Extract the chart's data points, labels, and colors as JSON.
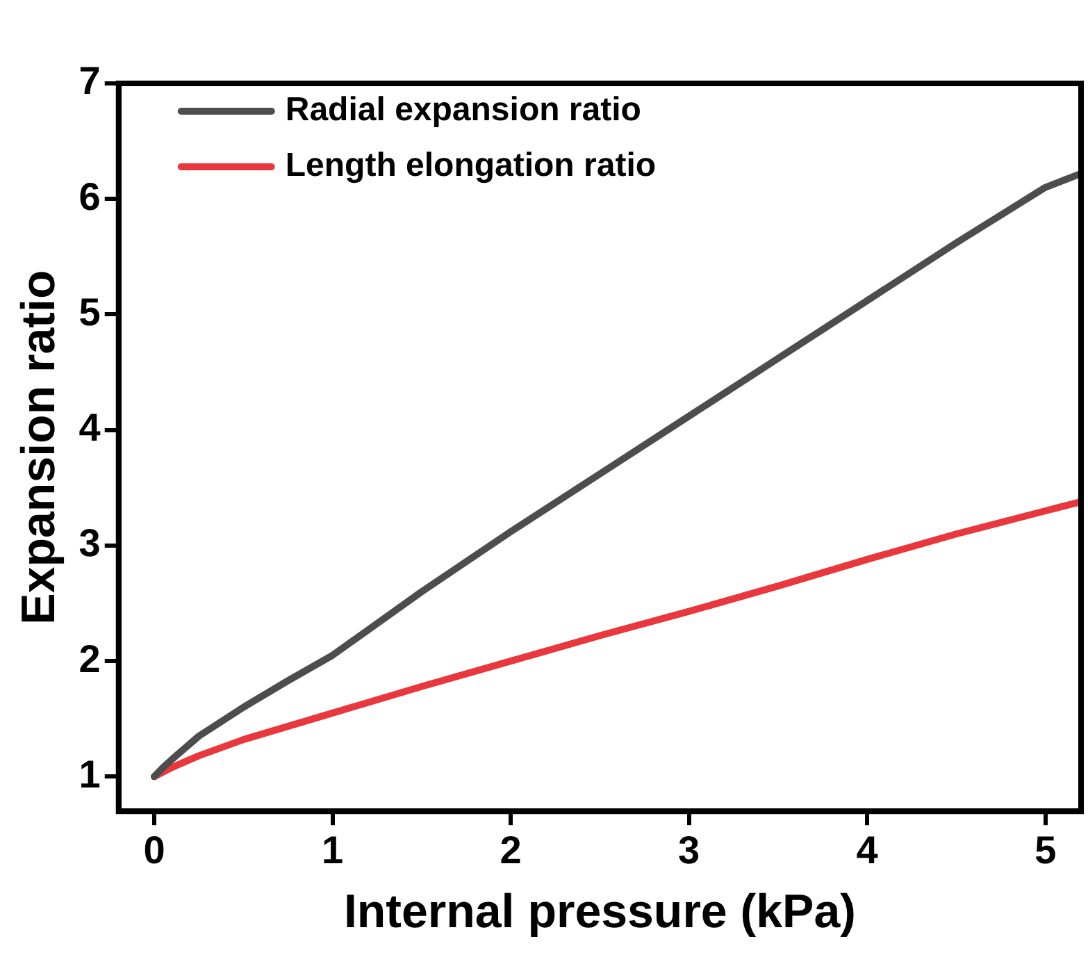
{
  "chart_data": {
    "type": "line",
    "xlabel": "Internal pressure (kPa)",
    "ylabel": "Expansion ratio",
    "xlim": [
      -0.2,
      5.2
    ],
    "xticks": [
      0,
      1,
      2,
      3,
      4,
      5
    ],
    "ylim": [
      0.7,
      7
    ],
    "yticks": [
      1,
      2,
      3,
      4,
      5,
      6,
      7
    ],
    "grid": false,
    "legend": "top left",
    "marker": "none",
    "line_style": "solid",
    "series": [
      {
        "name": "Radial expansion ratio",
        "color": "#4d4d4d",
        "x": [
          0,
          0.05,
          0.1,
          0.25,
          0.5,
          0.75,
          1,
          1.5,
          2,
          2.5,
          3,
          3.5,
          4,
          4.5,
          5,
          5.2
        ],
        "values": [
          1,
          1.08,
          1.15,
          1.35,
          1.6,
          1.83,
          2.05,
          2.6,
          3.12,
          3.62,
          4.12,
          4.62,
          5.12,
          5.62,
          6.1,
          6.22
        ]
      },
      {
        "name": "Length elongation ratio",
        "color": "#e8383d",
        "x": [
          0,
          0.1,
          0.25,
          0.5,
          1,
          1.5,
          2,
          2.5,
          3,
          3.5,
          4,
          4.5,
          5,
          5.2
        ],
        "values": [
          1,
          1.08,
          1.18,
          1.32,
          1.55,
          1.78,
          2.0,
          2.22,
          2.43,
          2.65,
          2.88,
          3.1,
          3.3,
          3.38
        ]
      }
    ]
  }
}
